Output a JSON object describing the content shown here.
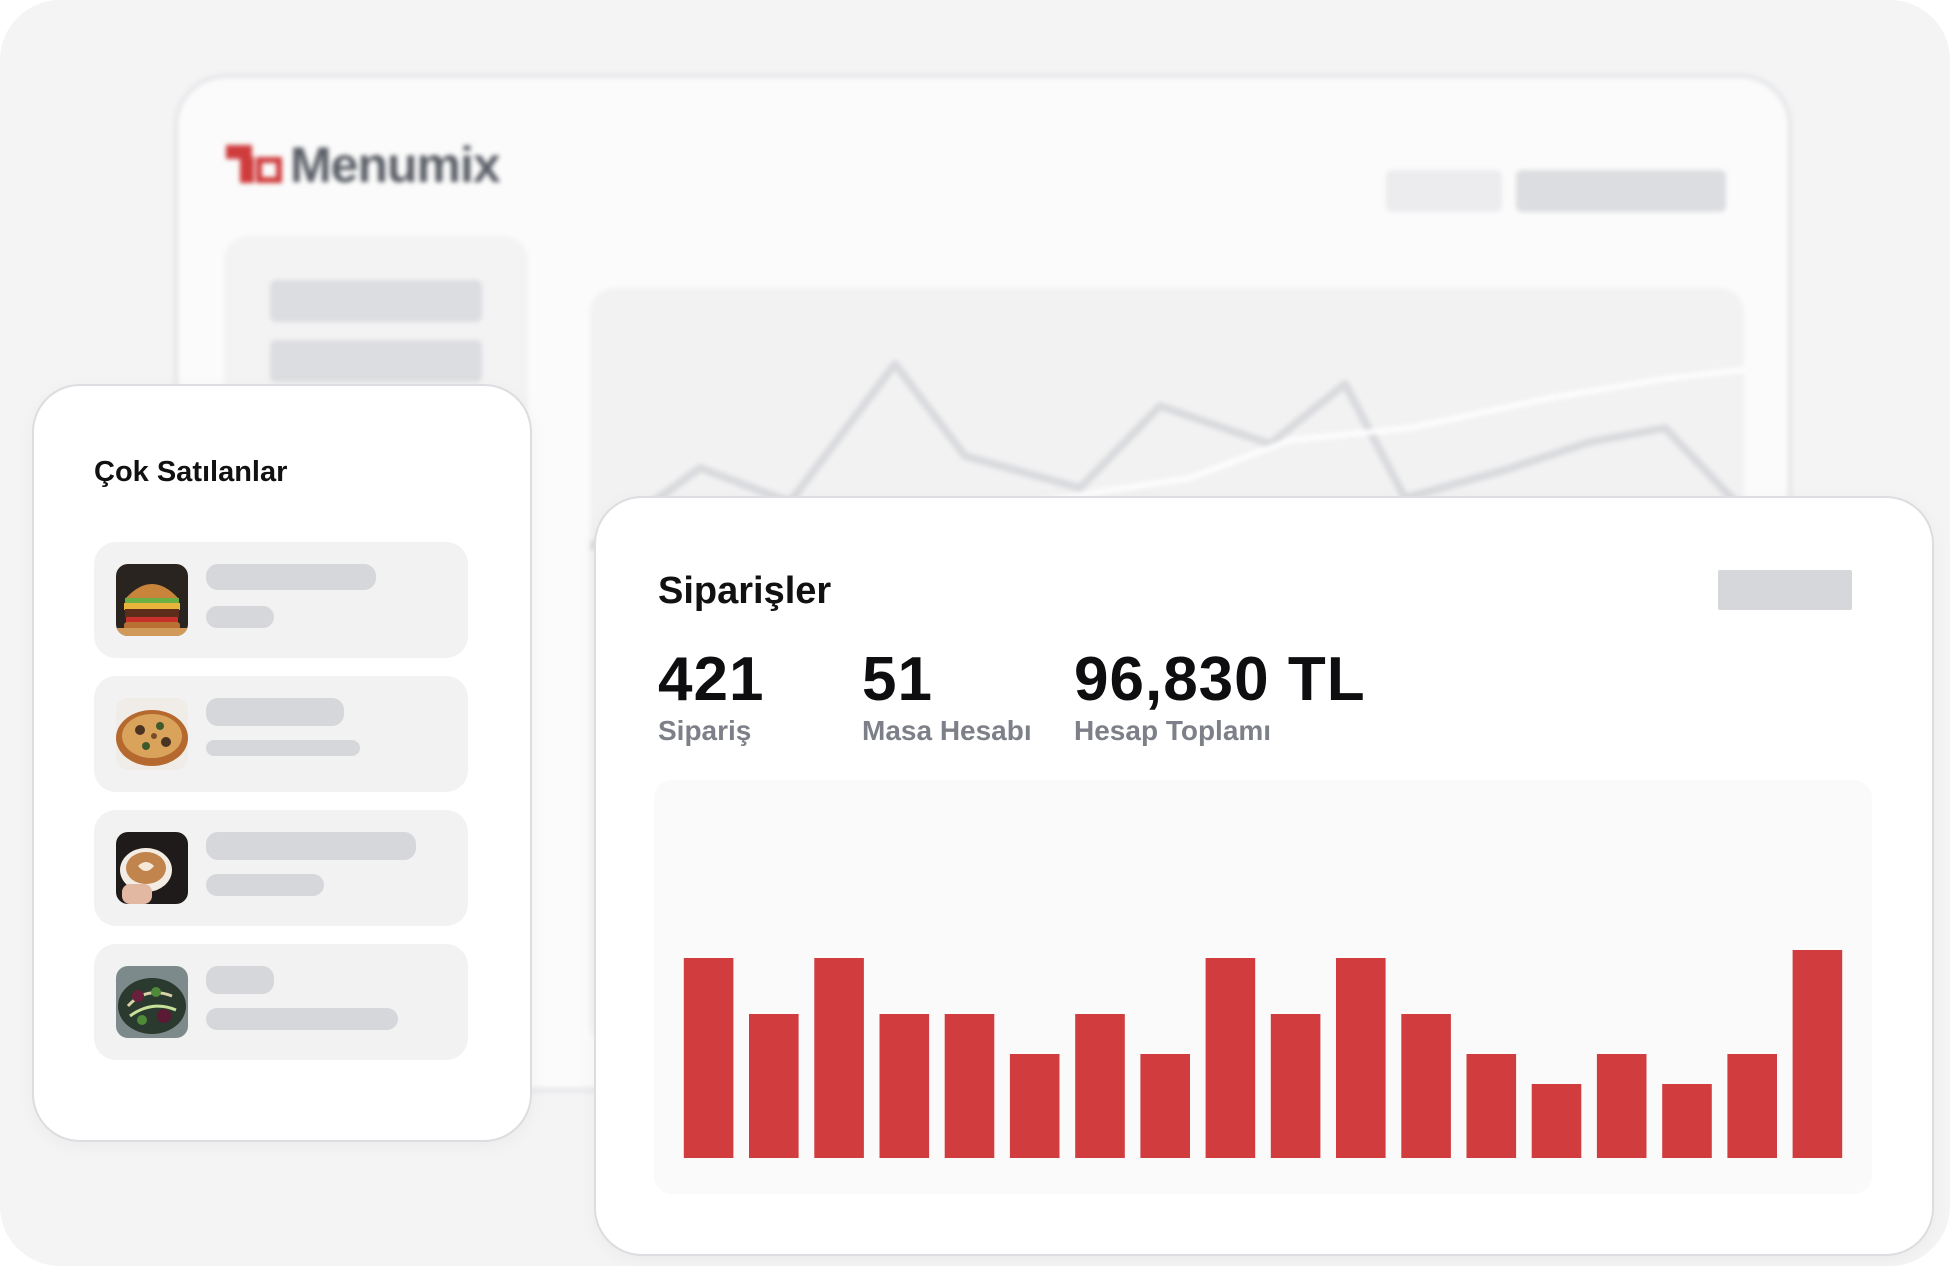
{
  "brand": {
    "name": "Menumix",
    "logo_color": "#cf3b3c"
  },
  "best_sellers": {
    "title": "Çok Satılanlar",
    "items": [
      {
        "image_icon": "burger-icon"
      },
      {
        "image_icon": "pizza-icon"
      },
      {
        "image_icon": "coffee-icon"
      },
      {
        "image_icon": "salad-icon"
      }
    ]
  },
  "orders": {
    "title": "Siparişler",
    "stats": [
      {
        "value": "421",
        "label": "Sipariş"
      },
      {
        "value": "51",
        "label": "Masa Hesabı"
      },
      {
        "value": "96,830 TL",
        "label": "Hesap Toplamı"
      }
    ]
  },
  "chart_data": {
    "type": "bar",
    "color": "#d13d3f",
    "values": [
      100,
      72,
      100,
      72,
      72,
      52,
      72,
      52,
      100,
      72,
      100,
      72,
      52,
      37,
      52,
      37,
      52,
      104
    ],
    "ylim": [
      0,
      150
    ]
  },
  "background_chart": {
    "color": "#e2e3e6"
  }
}
